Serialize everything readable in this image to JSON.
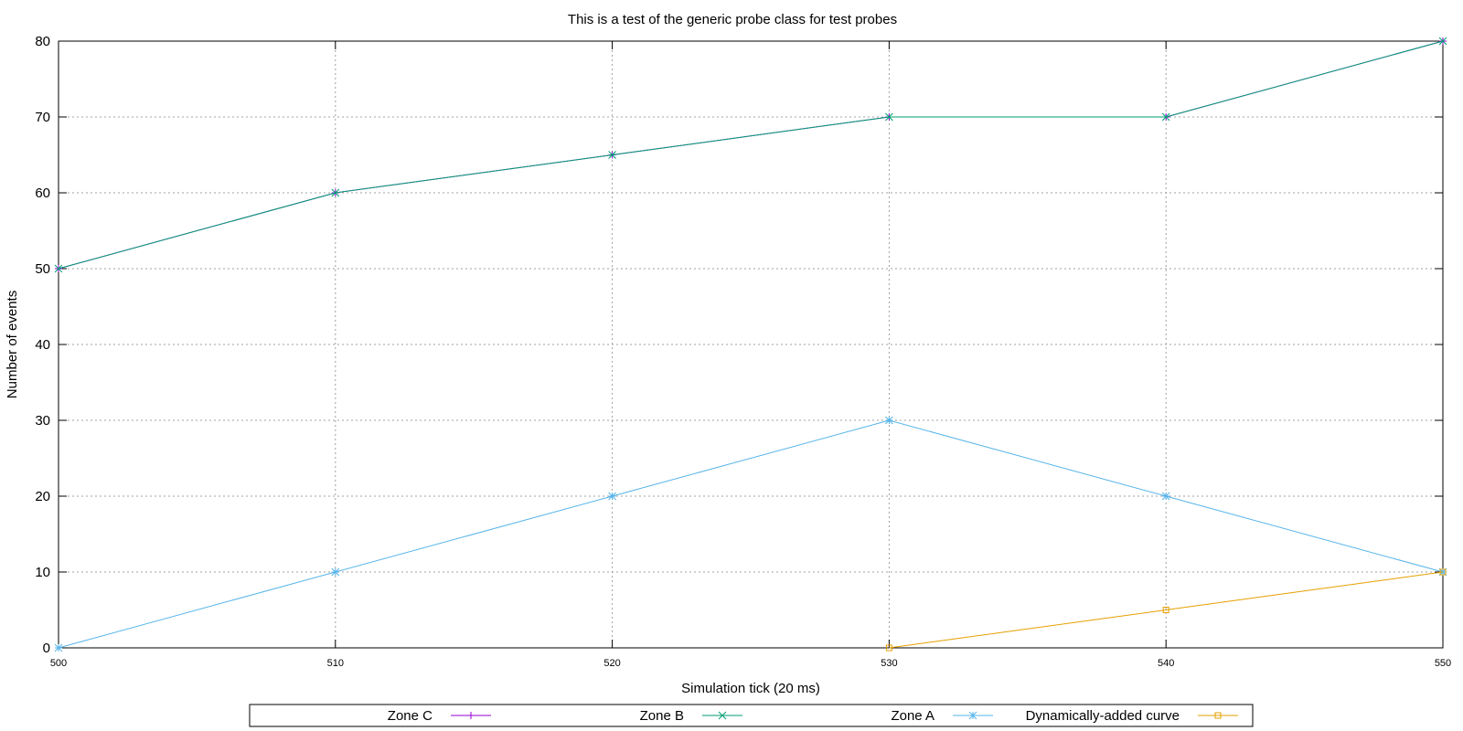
{
  "chart_data": {
    "type": "line",
    "title": "This is a test of the generic probe class for test probes",
    "xlabel": "Simulation tick (20 ms)",
    "ylabel": "Number of events",
    "xlim": [
      500,
      550
    ],
    "ylim": [
      0,
      80
    ],
    "x_ticks": [
      500,
      510,
      520,
      530,
      540,
      550
    ],
    "y_ticks": [
      0,
      10,
      20,
      30,
      40,
      50,
      60,
      70,
      80
    ],
    "grid": true,
    "legend_position": "bottom",
    "series": [
      {
        "name": "Zone C",
        "color": "#9400d3",
        "marker": "plus",
        "x": [
          500,
          510,
          520,
          530,
          540,
          550
        ],
        "y": [
          50,
          60,
          65,
          70,
          70,
          80
        ]
      },
      {
        "name": "Zone B",
        "color": "#009e73",
        "marker": "cross",
        "x": [
          500,
          510,
          520,
          530,
          540,
          550
        ],
        "y": [
          50,
          60,
          65,
          70,
          70,
          80
        ]
      },
      {
        "name": "Zone A",
        "color": "#56b4e9",
        "marker": "star",
        "x": [
          500,
          510,
          520,
          530,
          540,
          550
        ],
        "y": [
          0,
          10,
          20,
          30,
          20,
          10
        ]
      },
      {
        "name": "Dynamically-added curve",
        "color": "#e69f00",
        "marker": "square",
        "x": [
          530,
          540,
          550
        ],
        "y": [
          0,
          5,
          10
        ]
      }
    ]
  }
}
